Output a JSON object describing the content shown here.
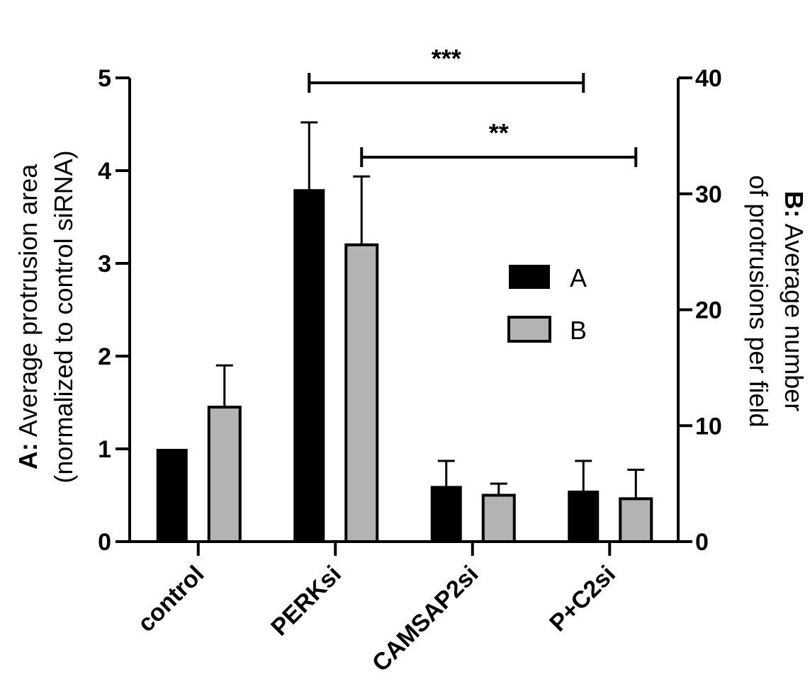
{
  "chart_data": {
    "type": "bar",
    "categories": [
      "control",
      "PERKsi",
      "CAMSAP2si",
      "P+C2si"
    ],
    "series": [
      {
        "name": "A",
        "axis": "left",
        "color": "#000000",
        "values": [
          1.0,
          3.8,
          0.6,
          0.55
        ],
        "errors": [
          0,
          0.72,
          0.27,
          0.32
        ]
      },
      {
        "name": "B",
        "axis": "right",
        "color": "#b3b3b3",
        "values": [
          11.6,
          25.6,
          4.0,
          3.7
        ],
        "errors": [
          3.6,
          5.9,
          1.0,
          2.5
        ]
      }
    ],
    "left_axis": {
      "title_bold": "A:",
      "title_rest": " Average protrusion area",
      "title_line2": "(normalized to control siRNA)",
      "ylim": [
        0,
        5
      ],
      "ticks": [
        "0",
        "1",
        "2",
        "3",
        "4",
        "5"
      ]
    },
    "right_axis": {
      "title_bold": "B:",
      "title_rest": " Average number",
      "title_line2": "of protrusions per field",
      "ylim": [
        0,
        40
      ],
      "ticks": [
        "0",
        "10",
        "20",
        "30",
        "40"
      ]
    },
    "legend": {
      "position": "center-right",
      "entries": [
        "A",
        "B"
      ]
    },
    "significance": [
      {
        "label": "***",
        "from_category": 1,
        "from_series": "A",
        "to_category": 3,
        "to_series": "A"
      },
      {
        "label": "**",
        "from_category": 1,
        "from_series": "B",
        "to_category": 3,
        "to_series": "B"
      }
    ]
  }
}
